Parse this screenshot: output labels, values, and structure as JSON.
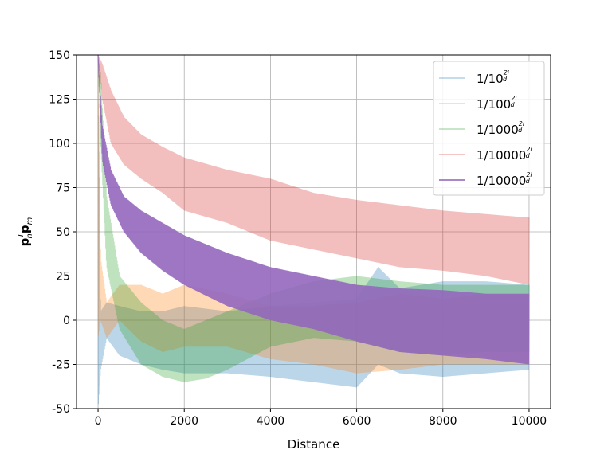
{
  "chart_data": {
    "type": "line",
    "title": "",
    "xlabel": "Distance",
    "ylabel_parts": {
      "p": "p",
      "n": "n",
      "T": "T",
      "m": "m"
    },
    "xlim": [
      -500,
      10500
    ],
    "ylim": [
      -50,
      150
    ],
    "xticks": [
      0,
      2000,
      4000,
      6000,
      8000,
      10000
    ],
    "yticks": [
      -50,
      -25,
      0,
      25,
      50,
      75,
      100,
      125,
      150
    ],
    "grid": true,
    "legend_position": "top-right",
    "series": [
      {
        "name_base": "1/10",
        "exp_num": "2i",
        "exp_den": "d",
        "color": "#1f77b4",
        "opacity": 0.3,
        "x": [
          0,
          60,
          200,
          500,
          1000,
          1500,
          2000,
          3000,
          4000,
          5000,
          6000,
          6500,
          7000,
          8000,
          9000,
          10000
        ],
        "y": [
          150,
          -20,
          0,
          -5,
          -10,
          -12,
          -15,
          -18,
          -22,
          -25,
          -20,
          20,
          0,
          -10,
          -5,
          -5
        ],
        "y_min": [
          -50,
          -28,
          -10,
          -20,
          -25,
          -28,
          -30,
          -30,
          -32,
          -35,
          -38,
          -25,
          -30,
          -32,
          -30,
          -28
        ],
        "y_max": [
          150,
          5,
          10,
          8,
          5,
          5,
          8,
          5,
          8,
          10,
          12,
          30,
          18,
          22,
          22,
          20
        ]
      },
      {
        "name_base": "1/100",
        "exp_num": "2i",
        "exp_den": "d",
        "color": "#ff7f0e",
        "opacity": 0.3,
        "x": [
          0,
          60,
          200,
          500,
          1000,
          1500,
          2000,
          3000,
          4000,
          5000,
          6000,
          7000,
          8000,
          9000,
          10000
        ],
        "y": [
          150,
          20,
          0,
          15,
          5,
          -5,
          5,
          0,
          -10,
          -15,
          -20,
          -15,
          -10,
          -10,
          -10
        ],
        "y_min": [
          -10,
          0,
          -10,
          0,
          -12,
          -18,
          -15,
          -15,
          -22,
          -25,
          -30,
          -28,
          -25,
          -25,
          -25
        ],
        "y_max": [
          150,
          35,
          10,
          20,
          20,
          15,
          20,
          15,
          8,
          8,
          10,
          15,
          12,
          15,
          15
        ]
      },
      {
        "name_base": "1/1000",
        "exp_num": "2i",
        "exp_den": "d",
        "color": "#2ca02c",
        "opacity": 0.3,
        "x": [
          0,
          60,
          200,
          500,
          1000,
          1500,
          2000,
          2500,
          3000,
          4000,
          5000,
          6000,
          7000,
          8000,
          9000,
          10000
        ],
        "y": [
          150,
          120,
          50,
          10,
          -10,
          -20,
          -25,
          -20,
          -15,
          0,
          10,
          10,
          5,
          0,
          5,
          5
        ],
        "y_min": [
          150,
          100,
          30,
          -5,
          -25,
          -32,
          -35,
          -33,
          -28,
          -15,
          -10,
          -12,
          -18,
          -20,
          -18,
          -18
        ],
        "y_max": [
          150,
          140,
          70,
          25,
          10,
          0,
          -5,
          0,
          5,
          15,
          22,
          25,
          22,
          20,
          20,
          20
        ]
      },
      {
        "name_base": "1/10000",
        "exp_num": "2i",
        "exp_den": "d",
        "color": "#d62728",
        "opacity": 0.3,
        "x": [
          0,
          100,
          300,
          600,
          1000,
          1500,
          2000,
          3000,
          4000,
          5000,
          6000,
          7000,
          8000,
          9000,
          10000
        ],
        "y": [
          150,
          135,
          115,
          100,
          92,
          85,
          78,
          70,
          62,
          55,
          50,
          48,
          45,
          44,
          42
        ],
        "y_min": [
          150,
          125,
          100,
          88,
          80,
          72,
          62,
          55,
          45,
          40,
          35,
          30,
          28,
          25,
          20
        ],
        "y_max": [
          150,
          145,
          130,
          115,
          105,
          98,
          92,
          85,
          80,
          72,
          68,
          65,
          62,
          60,
          58
        ]
      },
      {
        "name_base": "1/10000",
        "exp_num": "2i",
        "exp_den": "d",
        "color": "#9467bd",
        "opacity": 0.9,
        "x": [
          0,
          100,
          300,
          600,
          1000,
          1500,
          2000,
          3000,
          4000,
          5000,
          6000,
          7000,
          8000,
          9000,
          10000
        ],
        "y": [
          150,
          100,
          75,
          60,
          50,
          40,
          32,
          22,
          15,
          10,
          5,
          2,
          0,
          -2,
          -3
        ],
        "y_min": [
          150,
          90,
          65,
          50,
          38,
          28,
          20,
          8,
          0,
          -5,
          -12,
          -18,
          -20,
          -22,
          -25
        ],
        "y_max": [
          150,
          110,
          85,
          70,
          62,
          55,
          48,
          38,
          30,
          25,
          20,
          18,
          17,
          15,
          15
        ]
      }
    ]
  }
}
